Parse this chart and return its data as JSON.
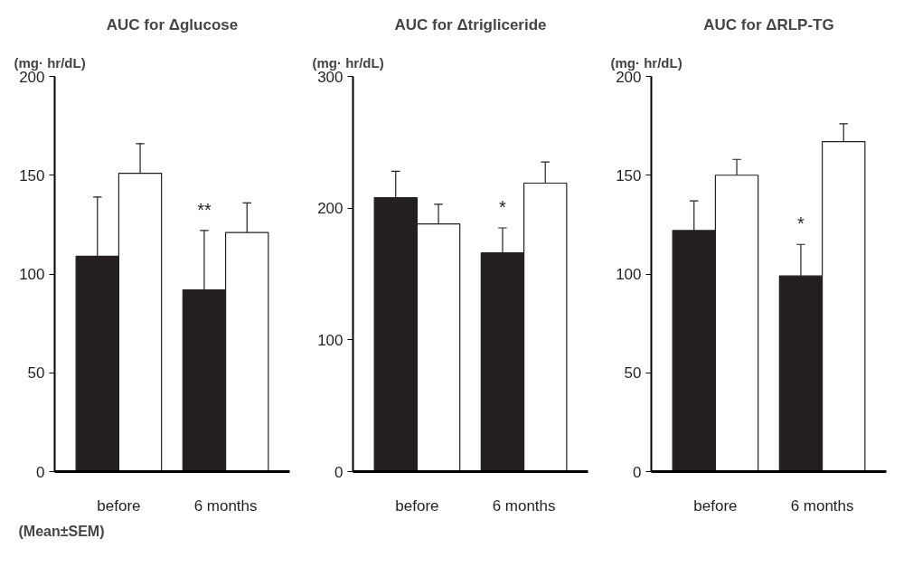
{
  "chart_data": [
    {
      "type": "bar",
      "title": "AUC for Δglucose",
      "ylabel": "(mg· hr/dL)",
      "categories": [
        "before",
        "6 months"
      ],
      "ylim": [
        0,
        200
      ],
      "yticks": [
        0,
        50,
        100,
        150,
        200
      ],
      "grid": false,
      "series": [
        {
          "color": "#231f20",
          "values": [
            109,
            92
          ],
          "errors": [
            [
              109,
              139
            ],
            [
              92,
              122
            ]
          ]
        },
        {
          "color": "#ffffff",
          "values": [
            151,
            121
          ],
          "errors": [
            [
              151,
              166
            ],
            [
              121,
              136
            ]
          ]
        }
      ],
      "annotations": [
        {
          "text": "**",
          "x": "6 months",
          "y": 122
        },
        "(Mean±SEM)"
      ]
    },
    {
      "type": "bar",
      "title": "AUC for Δtrigliceride",
      "ylabel": "(mg· hr/dL)",
      "categories": [
        "before",
        "6 months"
      ],
      "ylim": [
        0,
        300
      ],
      "yticks": [
        0,
        100,
        200,
        300
      ],
      "grid": false,
      "series": [
        {
          "color": "#231f20",
          "values": [
            208,
            166
          ],
          "errors": [
            [
              208,
              228
            ],
            [
              166,
              185
            ]
          ]
        },
        {
          "color": "#ffffff",
          "values": [
            188,
            219
          ],
          "errors": [
            [
              188,
              203
            ],
            [
              219,
              235
            ]
          ]
        }
      ],
      "annotations": [
        {
          "text": "*",
          "x": "6 months",
          "y": 185
        }
      ]
    },
    {
      "type": "bar",
      "title": "AUC for ΔRLP-TG",
      "ylabel": "(mg· hr/dL)",
      "categories": [
        "before",
        "6 months"
      ],
      "ylim": [
        0,
        200
      ],
      "yticks": [
        0,
        50,
        100,
        150,
        200
      ],
      "grid": false,
      "series": [
        {
          "color": "#231f20",
          "values": [
            122,
            99
          ],
          "errors": [
            [
              122,
              137
            ],
            [
              99,
              115
            ]
          ]
        },
        {
          "color": "#ffffff",
          "values": [
            150,
            167
          ],
          "errors": [
            [
              150,
              158
            ],
            [
              167,
              176
            ]
          ]
        }
      ],
      "annotations": [
        {
          "text": "*",
          "x": "6 months",
          "y": 115
        }
      ]
    }
  ]
}
